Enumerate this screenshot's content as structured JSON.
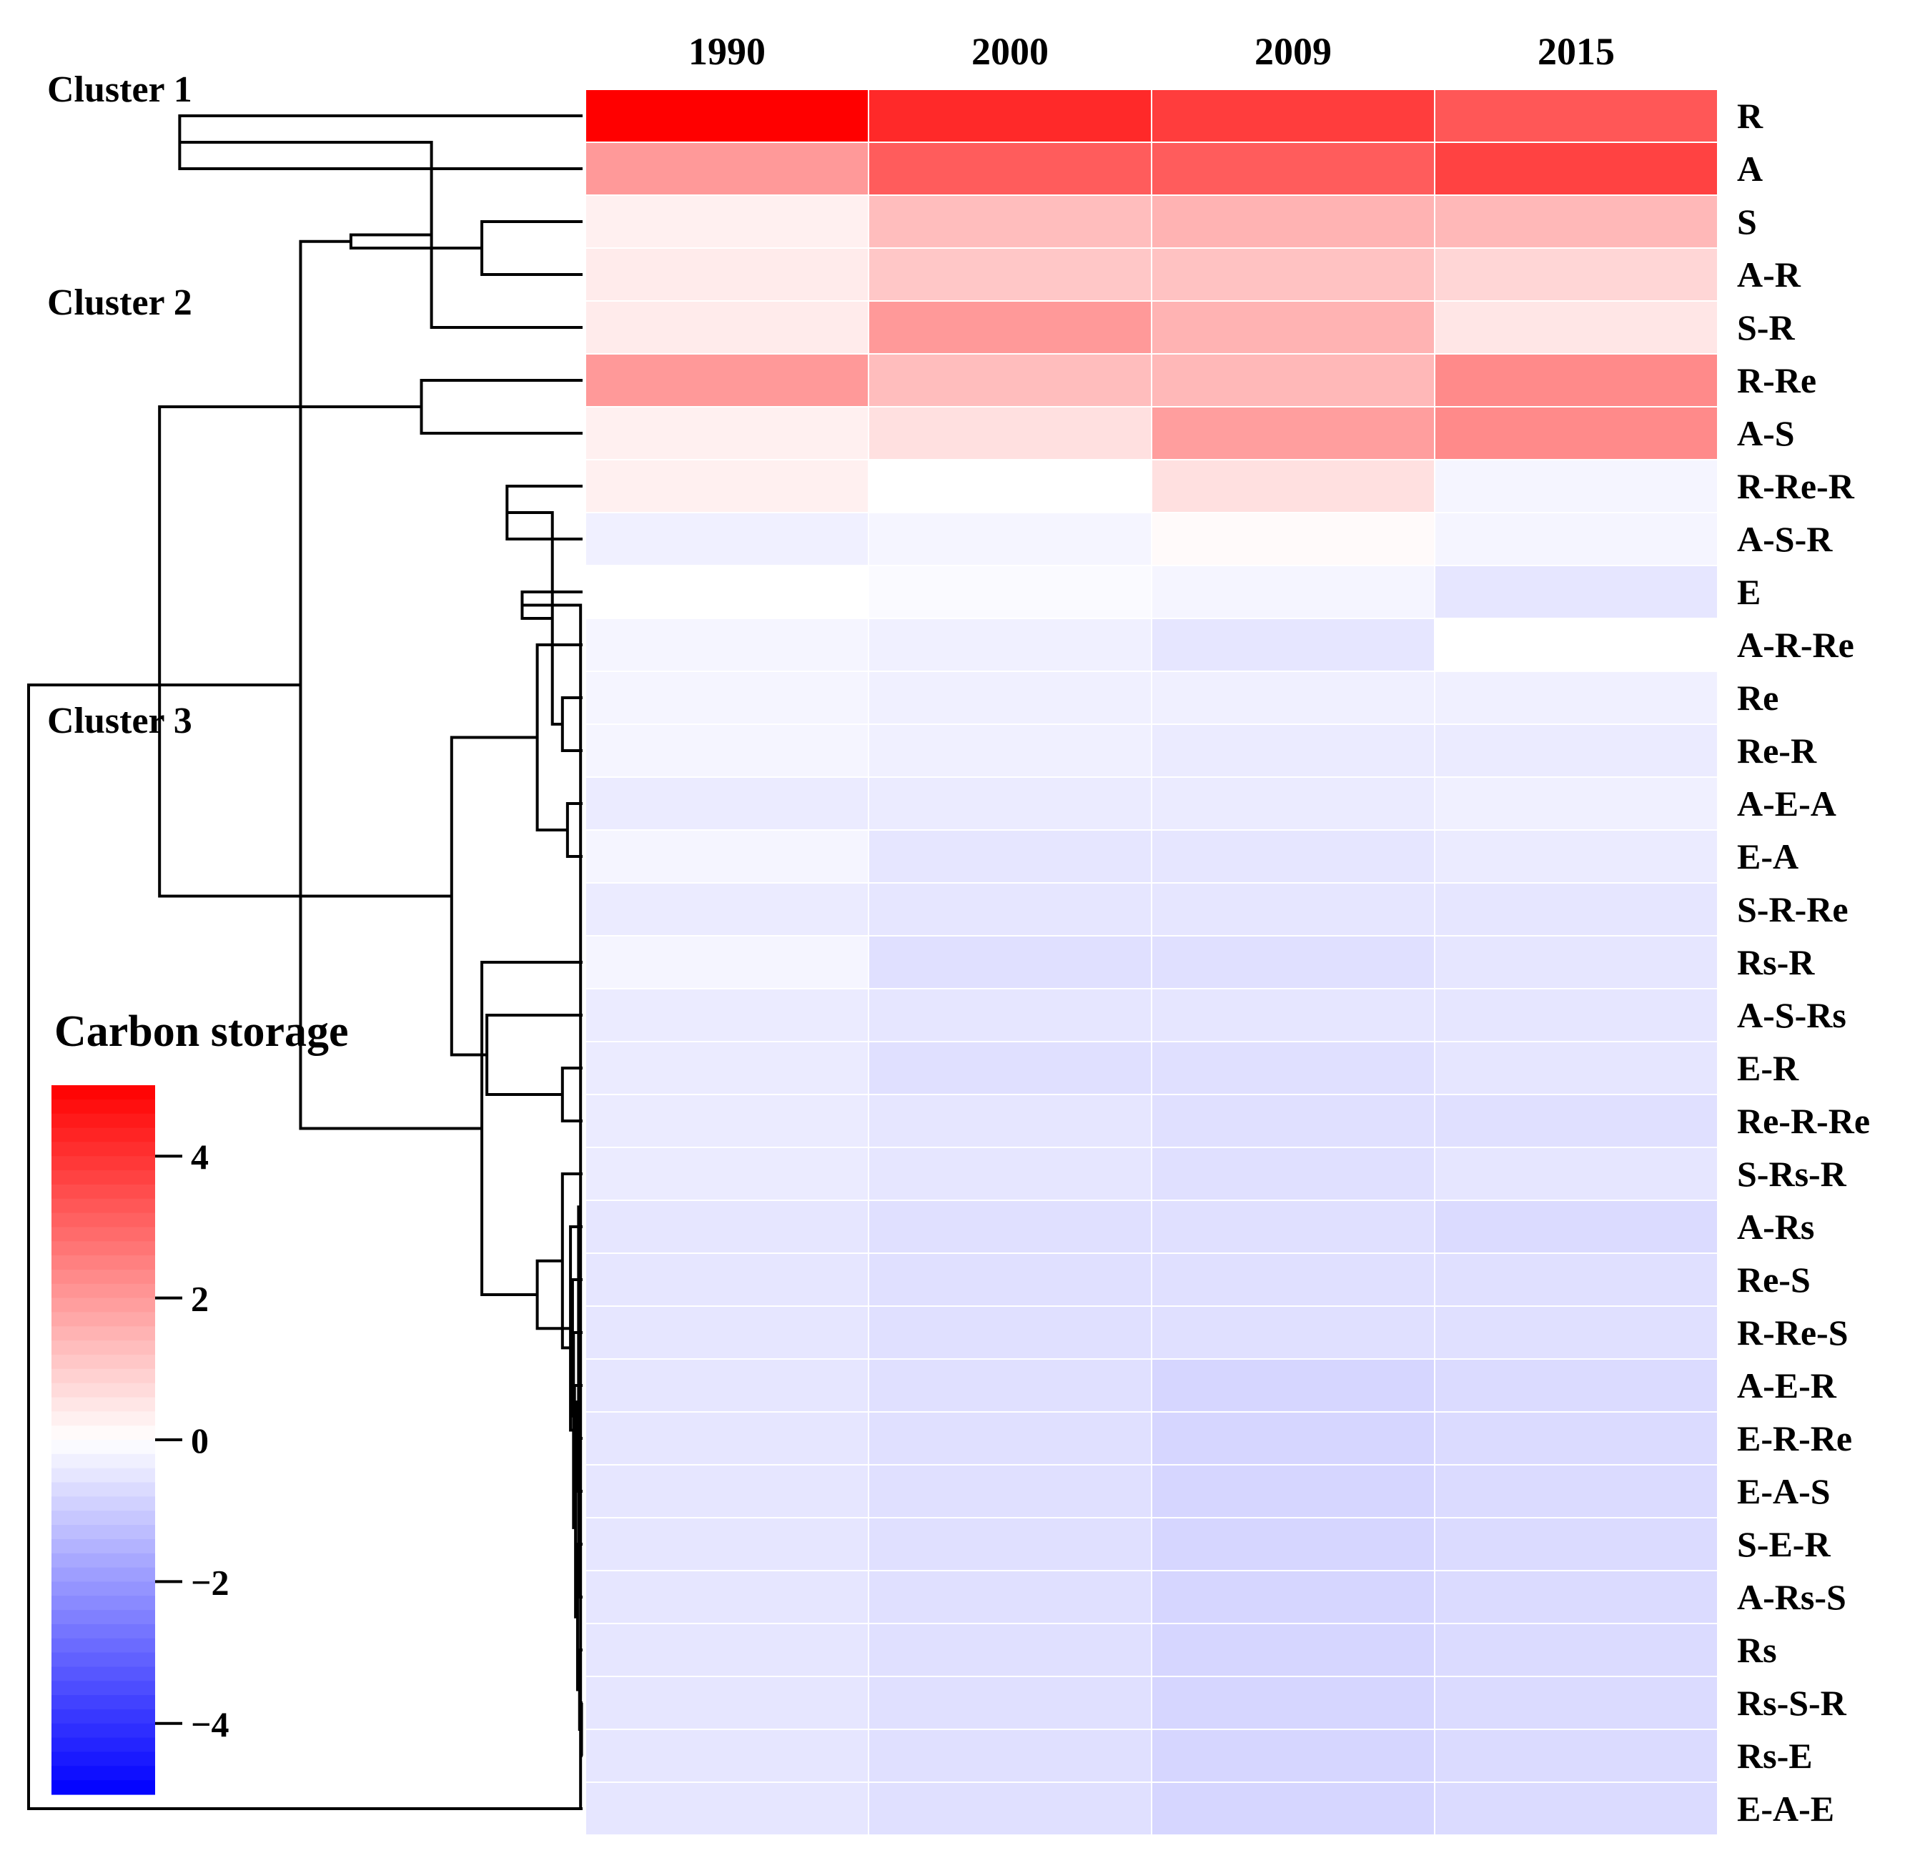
{
  "chart_data": {
    "type": "heatmap",
    "columns": [
      "1990",
      "2000",
      "2009",
      "2015"
    ],
    "rows": [
      "R",
      "A",
      "S",
      "A-R",
      "S-R",
      "R-Re",
      "A-S",
      "R-Re-R",
      "A-S-R",
      "E",
      "A-R-Re",
      "Re",
      "Re-R",
      "A-E-A",
      "E-A",
      "S-R-Re",
      "Rs-R",
      "A-S-Rs",
      "E-R",
      "Re-R-Re",
      "S-Rs-R",
      "A-Rs",
      "Re-S",
      "R-Re-S",
      "A-E-R",
      "E-R-Re",
      "E-A-S",
      "S-E-R",
      "A-Rs-S",
      "Rs",
      "Rs-S-R",
      "Rs-E",
      "E-A-E"
    ],
    "values": [
      [
        5.0,
        4.2,
        3.8,
        3.3
      ],
      [
        2.0,
        3.2,
        3.2,
        3.7
      ],
      [
        0.3,
        1.3,
        1.5,
        1.4
      ],
      [
        0.4,
        1.1,
        1.2,
        0.8
      ],
      [
        0.4,
        2.0,
        1.5,
        0.5
      ],
      [
        2.0,
        1.3,
        1.4,
        2.3
      ],
      [
        0.3,
        0.6,
        1.9,
        2.3
      ],
      [
        0.3,
        0.0,
        0.6,
        -0.2
      ],
      [
        -0.3,
        -0.2,
        0.1,
        -0.2
      ],
      [
        0.0,
        -0.1,
        -0.2,
        -0.5
      ],
      [
        -0.2,
        -0.3,
        -0.5,
        0.0
      ],
      [
        -0.2,
        -0.3,
        -0.3,
        -0.3
      ],
      [
        -0.2,
        -0.3,
        -0.4,
        -0.4
      ],
      [
        -0.4,
        -0.4,
        -0.4,
        -0.3
      ],
      [
        -0.2,
        -0.5,
        -0.5,
        -0.4
      ],
      [
        -0.4,
        -0.5,
        -0.5,
        -0.5
      ],
      [
        -0.2,
        -0.6,
        -0.6,
        -0.5
      ],
      [
        -0.4,
        -0.5,
        -0.5,
        -0.5
      ],
      [
        -0.4,
        -0.6,
        -0.6,
        -0.5
      ],
      [
        -0.4,
        -0.5,
        -0.6,
        -0.6
      ],
      [
        -0.4,
        -0.5,
        -0.6,
        -0.5
      ],
      [
        -0.5,
        -0.6,
        -0.6,
        -0.7
      ],
      [
        -0.5,
        -0.6,
        -0.6,
        -0.6
      ],
      [
        -0.5,
        -0.6,
        -0.6,
        -0.6
      ],
      [
        -0.5,
        -0.6,
        -0.8,
        -0.7
      ],
      [
        -0.5,
        -0.6,
        -0.8,
        -0.7
      ],
      [
        -0.5,
        -0.6,
        -0.8,
        -0.7
      ],
      [
        -0.5,
        -0.6,
        -0.8,
        -0.7
      ],
      [
        -0.5,
        -0.6,
        -0.8,
        -0.7
      ],
      [
        -0.5,
        -0.6,
        -0.8,
        -0.7
      ],
      [
        -0.5,
        -0.6,
        -0.8,
        -0.7
      ],
      [
        -0.5,
        -0.6,
        -0.8,
        -0.7
      ],
      [
        -0.5,
        -0.6,
        -0.8,
        -0.7
      ]
    ],
    "clusters": [
      {
        "label": "Cluster 1",
        "rows": [
          "R",
          "A"
        ]
      },
      {
        "label": "Cluster 2",
        "rows": [
          "S",
          "A-R",
          "S-R",
          "R-Re",
          "A-S"
        ]
      },
      {
        "label": "Cluster 3",
        "rows": [
          "R-Re-R",
          "A-S-R",
          "E",
          "A-R-Re",
          "Re",
          "Re-R",
          "A-E-A",
          "E-A",
          "S-R-Re",
          "Rs-R",
          "A-S-Rs",
          "E-R",
          "Re-R-Re",
          "S-Rs-R",
          "A-Rs",
          "Re-S",
          "R-Re-S",
          "A-E-R",
          "E-R-Re",
          "E-A-S",
          "S-E-R",
          "A-Rs-S",
          "Rs",
          "Rs-S-R",
          "Rs-E",
          "E-A-E"
        ]
      }
    ],
    "dendrogram": [
      [
        0,
        1,
        4.0
      ],
      [
        2,
        3,
        1.0
      ],
      [
        33,
        4,
        1.5
      ],
      [
        5,
        6,
        1.6
      ],
      [
        34,
        35,
        2.3
      ],
      [
        7,
        8,
        0.75
      ],
      [
        11,
        12,
        0.2
      ],
      [
        13,
        14,
        0.15
      ],
      [
        38,
        39,
        0.3
      ],
      [
        10,
        40,
        0.45
      ],
      [
        9,
        41,
        0.6
      ],
      [
        30,
        31,
        0.01
      ],
      [
        43,
        32,
        0.02
      ],
      [
        29,
        44,
        0.03
      ],
      [
        28,
        45,
        0.04
      ],
      [
        27,
        46,
        0.05
      ],
      [
        26,
        47,
        0.06
      ],
      [
        25,
        48,
        0.07
      ],
      [
        24,
        49,
        0.08
      ],
      [
        23,
        50,
        0.09
      ],
      [
        22,
        51,
        0.1
      ],
      [
        21,
        52,
        0.12
      ],
      [
        20,
        53,
        0.2
      ],
      [
        18,
        19,
        0.2
      ],
      [
        55,
        54,
        0.45
      ],
      [
        17,
        56,
        0.95
      ],
      [
        16,
        57,
        1.0
      ],
      [
        42,
        58,
        1.3
      ],
      [
        37,
        59,
        2.8
      ],
      [
        36,
        60,
        4.2
      ],
      [
        32,
        61,
        5.5
      ]
    ],
    "legend": {
      "title": "Carbon storage",
      "range": [
        -5,
        5
      ],
      "ticks": [
        4,
        2,
        0,
        -2,
        -4
      ],
      "tick_labels": [
        "4",
        "2",
        "0",
        "−2",
        "−4"
      ],
      "colors": {
        "high": "#ff0000",
        "mid": "#ffffff",
        "low": "#0000ff"
      }
    },
    "grid": false
  }
}
